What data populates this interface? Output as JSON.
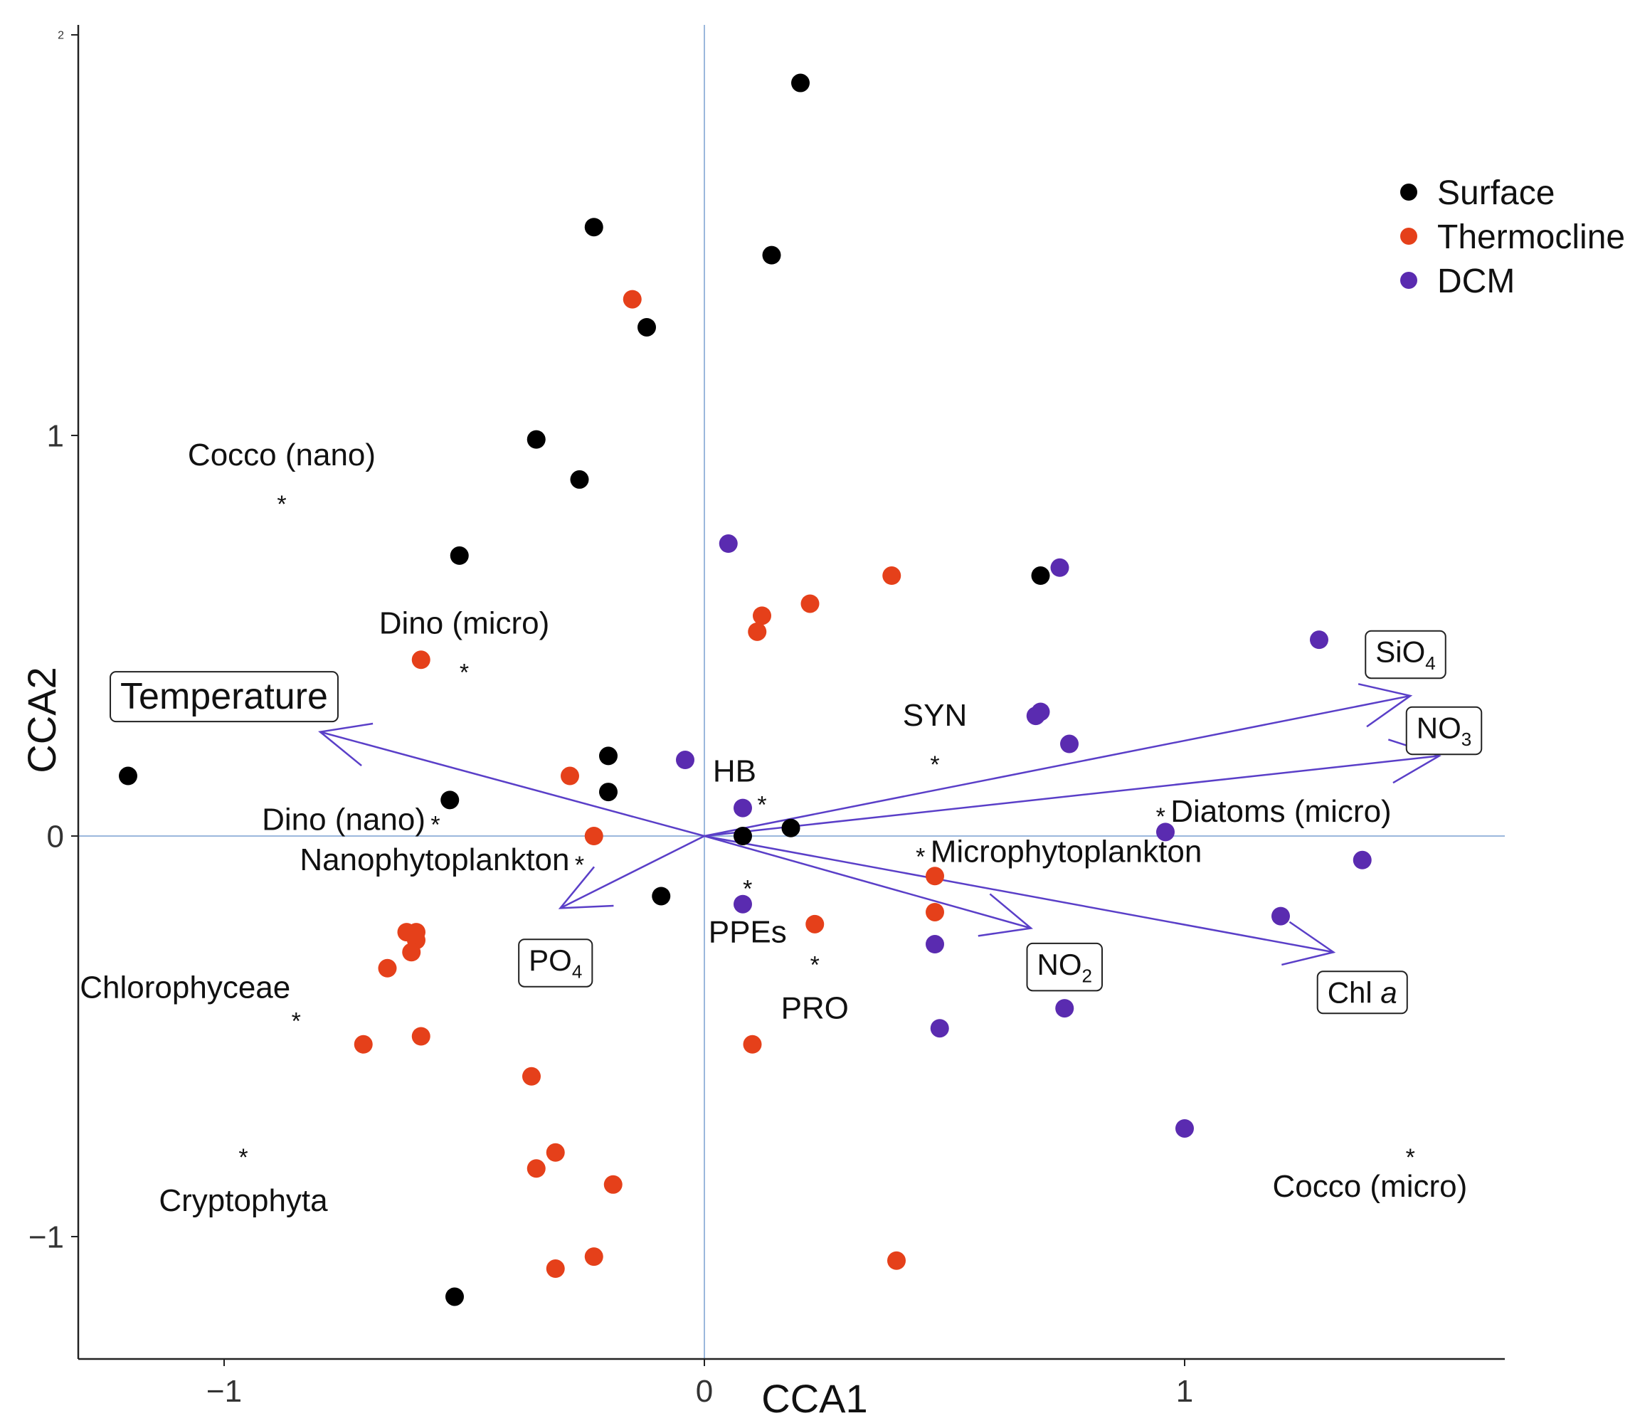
{
  "chart_data": {
    "type": "scatter",
    "subtype": "CCA biplot",
    "title": "",
    "xlabel": "CCA1",
    "ylabel": "CCA2",
    "xlim": [
      -1.3,
      1.65
    ],
    "ylim": [
      -1.3,
      2.05
    ],
    "x_ticks": [
      {
        "value": -1,
        "label": "−1"
      },
      {
        "value": 0,
        "label": "0"
      },
      {
        "value": 1,
        "label": "1"
      }
    ],
    "y_ticks": [
      {
        "value": -1,
        "label": "−1"
      },
      {
        "value": 0,
        "label": "0"
      },
      {
        "value": 1,
        "label": "1"
      },
      {
        "value": 2,
        "label": "2"
      }
    ],
    "grid": false,
    "reference_lines": {
      "x": 0,
      "y": 0,
      "color": "#9bb8dc"
    },
    "legend": {
      "placement": "top-right",
      "entries": [
        {
          "label": "Surface",
          "color": "#000000"
        },
        {
          "label": "Thermocline",
          "color": "#e5401a"
        },
        {
          "label": "DCM",
          "color": "#5a2bb0"
        }
      ]
    },
    "series": [
      {
        "name": "Surface",
        "color": "#000000",
        "points": [
          [
            0.2,
            1.88
          ],
          [
            -0.23,
            1.52
          ],
          [
            0.14,
            1.45
          ],
          [
            -0.12,
            1.27
          ],
          [
            -0.35,
            0.99
          ],
          [
            -0.26,
            0.89
          ],
          [
            -0.51,
            0.7
          ],
          [
            0.7,
            0.65
          ],
          [
            -1.2,
            0.15
          ],
          [
            -0.2,
            0.2
          ],
          [
            -0.2,
            0.11
          ],
          [
            -0.53,
            0.09
          ],
          [
            0.18,
            0.02
          ],
          [
            0.08,
            0.0
          ],
          [
            -0.09,
            -0.15
          ],
          [
            -0.52,
            -1.15
          ]
        ]
      },
      {
        "name": "Thermocline",
        "color": "#e5401a",
        "points": [
          [
            -0.15,
            1.34
          ],
          [
            0.39,
            0.65
          ],
          [
            0.22,
            0.58
          ],
          [
            0.12,
            0.55
          ],
          [
            0.11,
            0.51
          ],
          [
            -0.59,
            0.44
          ],
          [
            -0.28,
            0.15
          ],
          [
            -0.23,
            0.0
          ],
          [
            0.48,
            -0.1
          ],
          [
            0.48,
            -0.19
          ],
          [
            0.23,
            -0.22
          ],
          [
            -0.62,
            -0.24
          ],
          [
            -0.6,
            -0.24
          ],
          [
            -0.6,
            -0.26
          ],
          [
            -0.61,
            -0.29
          ],
          [
            -0.66,
            -0.33
          ],
          [
            -0.71,
            -0.52
          ],
          [
            -0.59,
            -0.5
          ],
          [
            -0.36,
            -0.6
          ],
          [
            -0.31,
            -0.79
          ],
          [
            -0.35,
            -0.83
          ],
          [
            -0.19,
            -0.87
          ],
          [
            -0.23,
            -1.05
          ],
          [
            -0.31,
            -1.08
          ],
          [
            0.1,
            -0.52
          ],
          [
            0.4,
            -1.06
          ]
        ]
      },
      {
        "name": "DCM",
        "color": "#5a2bb0",
        "points": [
          [
            0.05,
            0.73
          ],
          [
            0.74,
            0.67
          ],
          [
            1.28,
            0.49
          ],
          [
            0.7,
            0.31
          ],
          [
            0.69,
            0.3
          ],
          [
            0.76,
            0.23
          ],
          [
            -0.04,
            0.19
          ],
          [
            0.08,
            0.07
          ],
          [
            0.96,
            0.01
          ],
          [
            1.37,
            -0.06
          ],
          [
            0.08,
            -0.17
          ],
          [
            1.2,
            -0.2
          ],
          [
            0.48,
            -0.27
          ],
          [
            0.75,
            -0.43
          ],
          [
            0.49,
            -0.48
          ],
          [
            1.0,
            -0.73
          ]
        ]
      }
    ],
    "species": [
      {
        "label": "Cocco (nano)",
        "x": -0.88,
        "y": 0.84,
        "label_side": "top"
      },
      {
        "label": "Dino (micro)",
        "x": -0.5,
        "y": 0.42,
        "label_side": "top"
      },
      {
        "label": "Dino (nano)",
        "x": -0.56,
        "y": 0.04,
        "label_side": "left"
      },
      {
        "label": "Nanophytoplankton",
        "x": -0.26,
        "y": -0.06,
        "label_side": "left"
      },
      {
        "label": "Chlorophyceae",
        "x": -0.85,
        "y": -0.45,
        "label_side": "top-left"
      },
      {
        "label": "Cryptophyta",
        "x": -0.96,
        "y": -0.79,
        "label_side": "bottom"
      },
      {
        "label": "SYN",
        "x": 0.48,
        "y": 0.19,
        "label_side": "top"
      },
      {
        "label": "HB",
        "x": 0.12,
        "y": 0.09,
        "label_side": "top-left"
      },
      {
        "label": "Diatoms (micro)",
        "x": 0.95,
        "y": 0.06,
        "label_side": "right"
      },
      {
        "label": "Microphytoplankton",
        "x": 0.45,
        "y": -0.04,
        "label_side": "right"
      },
      {
        "label": "PPEs",
        "x": 0.09,
        "y": -0.12,
        "label_side": "bottom"
      },
      {
        "label": "PRO",
        "x": 0.23,
        "y": -0.31,
        "label_side": "bottom"
      },
      {
        "label": "Cocco (micro)",
        "x": 1.47,
        "y": -0.79,
        "label_side": "bottom-left"
      }
    ],
    "environmental_vectors": [
      {
        "name": "Temperature",
        "x": -0.8,
        "y": 0.26,
        "label_x": -1.0,
        "label_y": 0.35
      },
      {
        "name": "SiO",
        "sub": "4",
        "x": 1.47,
        "y": 0.35,
        "label_x": 1.46,
        "label_y": 0.46
      },
      {
        "name": "NO",
        "sub": "3",
        "x": 1.53,
        "y": 0.2,
        "label_x": 1.54,
        "label_y": 0.27
      },
      {
        "name": "NO",
        "sub": "2",
        "x": 0.68,
        "y": -0.23,
        "label_x": 0.75,
        "label_y": -0.32
      },
      {
        "name": "Chl",
        "italic": "a",
        "x": 1.31,
        "y": -0.29,
        "label_x": 1.37,
        "label_y": -0.39
      },
      {
        "name": "PO",
        "sub": "4",
        "x": -0.3,
        "y": -0.18,
        "label_x": -0.31,
        "label_y": -0.31
      }
    ],
    "vector_color": "#5a3fc8"
  }
}
